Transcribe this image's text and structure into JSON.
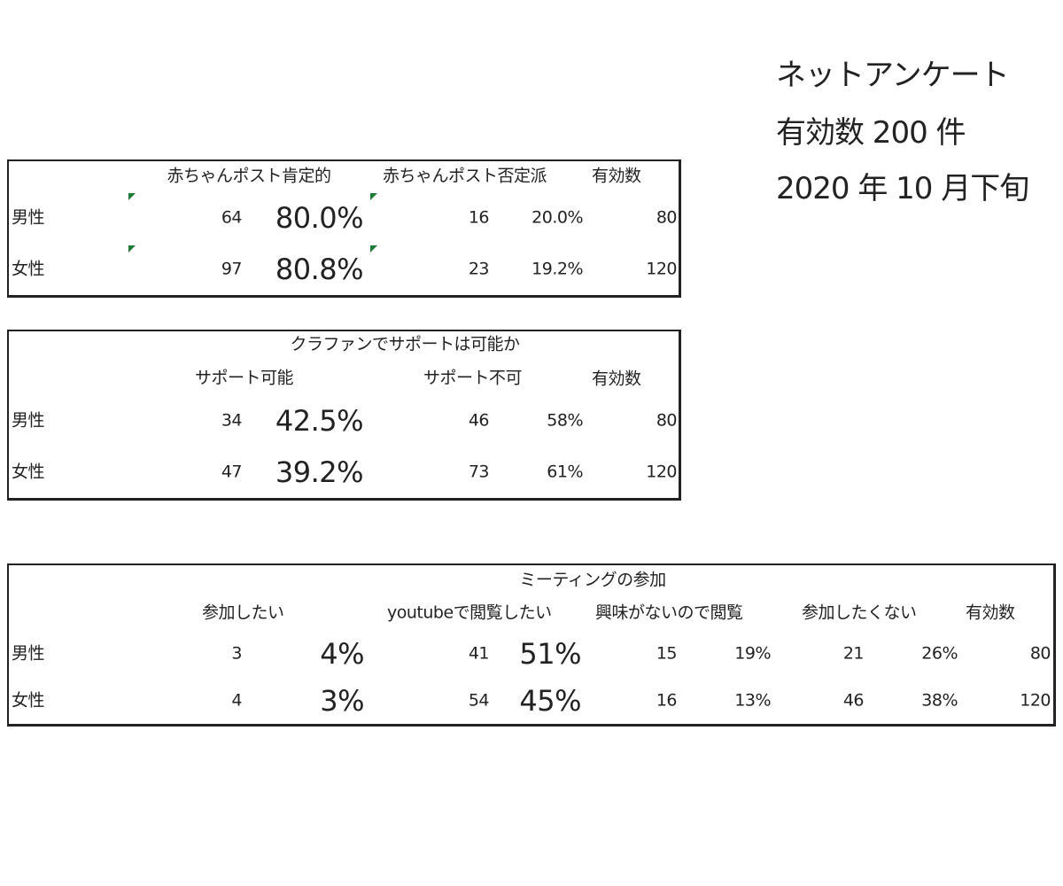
{
  "side_info": [
    "ネットアンケート",
    "有効数 200 件",
    "2020 年 10 月下旬"
  ],
  "table1": {
    "headers": [
      "赤ちゃんポスト肯定的",
      "赤ちゃんポスト否定派",
      "有効数"
    ],
    "rows": [
      {
        "label": "男性",
        "pos": "64",
        "pos_pct": "80.0%",
        "neg": "16",
        "neg_pct": "20.0%",
        "total": "80"
      },
      {
        "label": "女性",
        "pos": "97",
        "pos_pct": "80.8%",
        "neg": "23",
        "neg_pct": "19.2%",
        "total": "120"
      }
    ]
  },
  "table2": {
    "title": "クラファンでサポートは可能か",
    "headers": [
      "サポート可能",
      "サポート不可",
      "有効数"
    ],
    "rows": [
      {
        "label": "男性",
        "yes": "34",
        "yes_pct": "42.5%",
        "no": "46",
        "no_pct": "58%",
        "total": "80"
      },
      {
        "label": "女性",
        "yes": "47",
        "yes_pct": "39.2%",
        "no": "73",
        "no_pct": "61%",
        "total": "120"
      }
    ]
  },
  "table3": {
    "title": "ミーティングの参加",
    "headers": [
      "参加したい",
      "youtubeで閲覧したい",
      "興味がないので閲覧",
      "参加したくない",
      "有効数"
    ],
    "rows": [
      {
        "label": "男性",
        "v": [
          "3",
          "4%",
          "41",
          "51%",
          "15",
          "19%",
          "21",
          "26%",
          "80"
        ]
      },
      {
        "label": "女性",
        "v": [
          "4",
          "3%",
          "54",
          "45%",
          "16",
          "13%",
          "46",
          "38%",
          "120"
        ]
      }
    ]
  },
  "colors": {
    "error_indicator": "#1e7b34"
  }
}
